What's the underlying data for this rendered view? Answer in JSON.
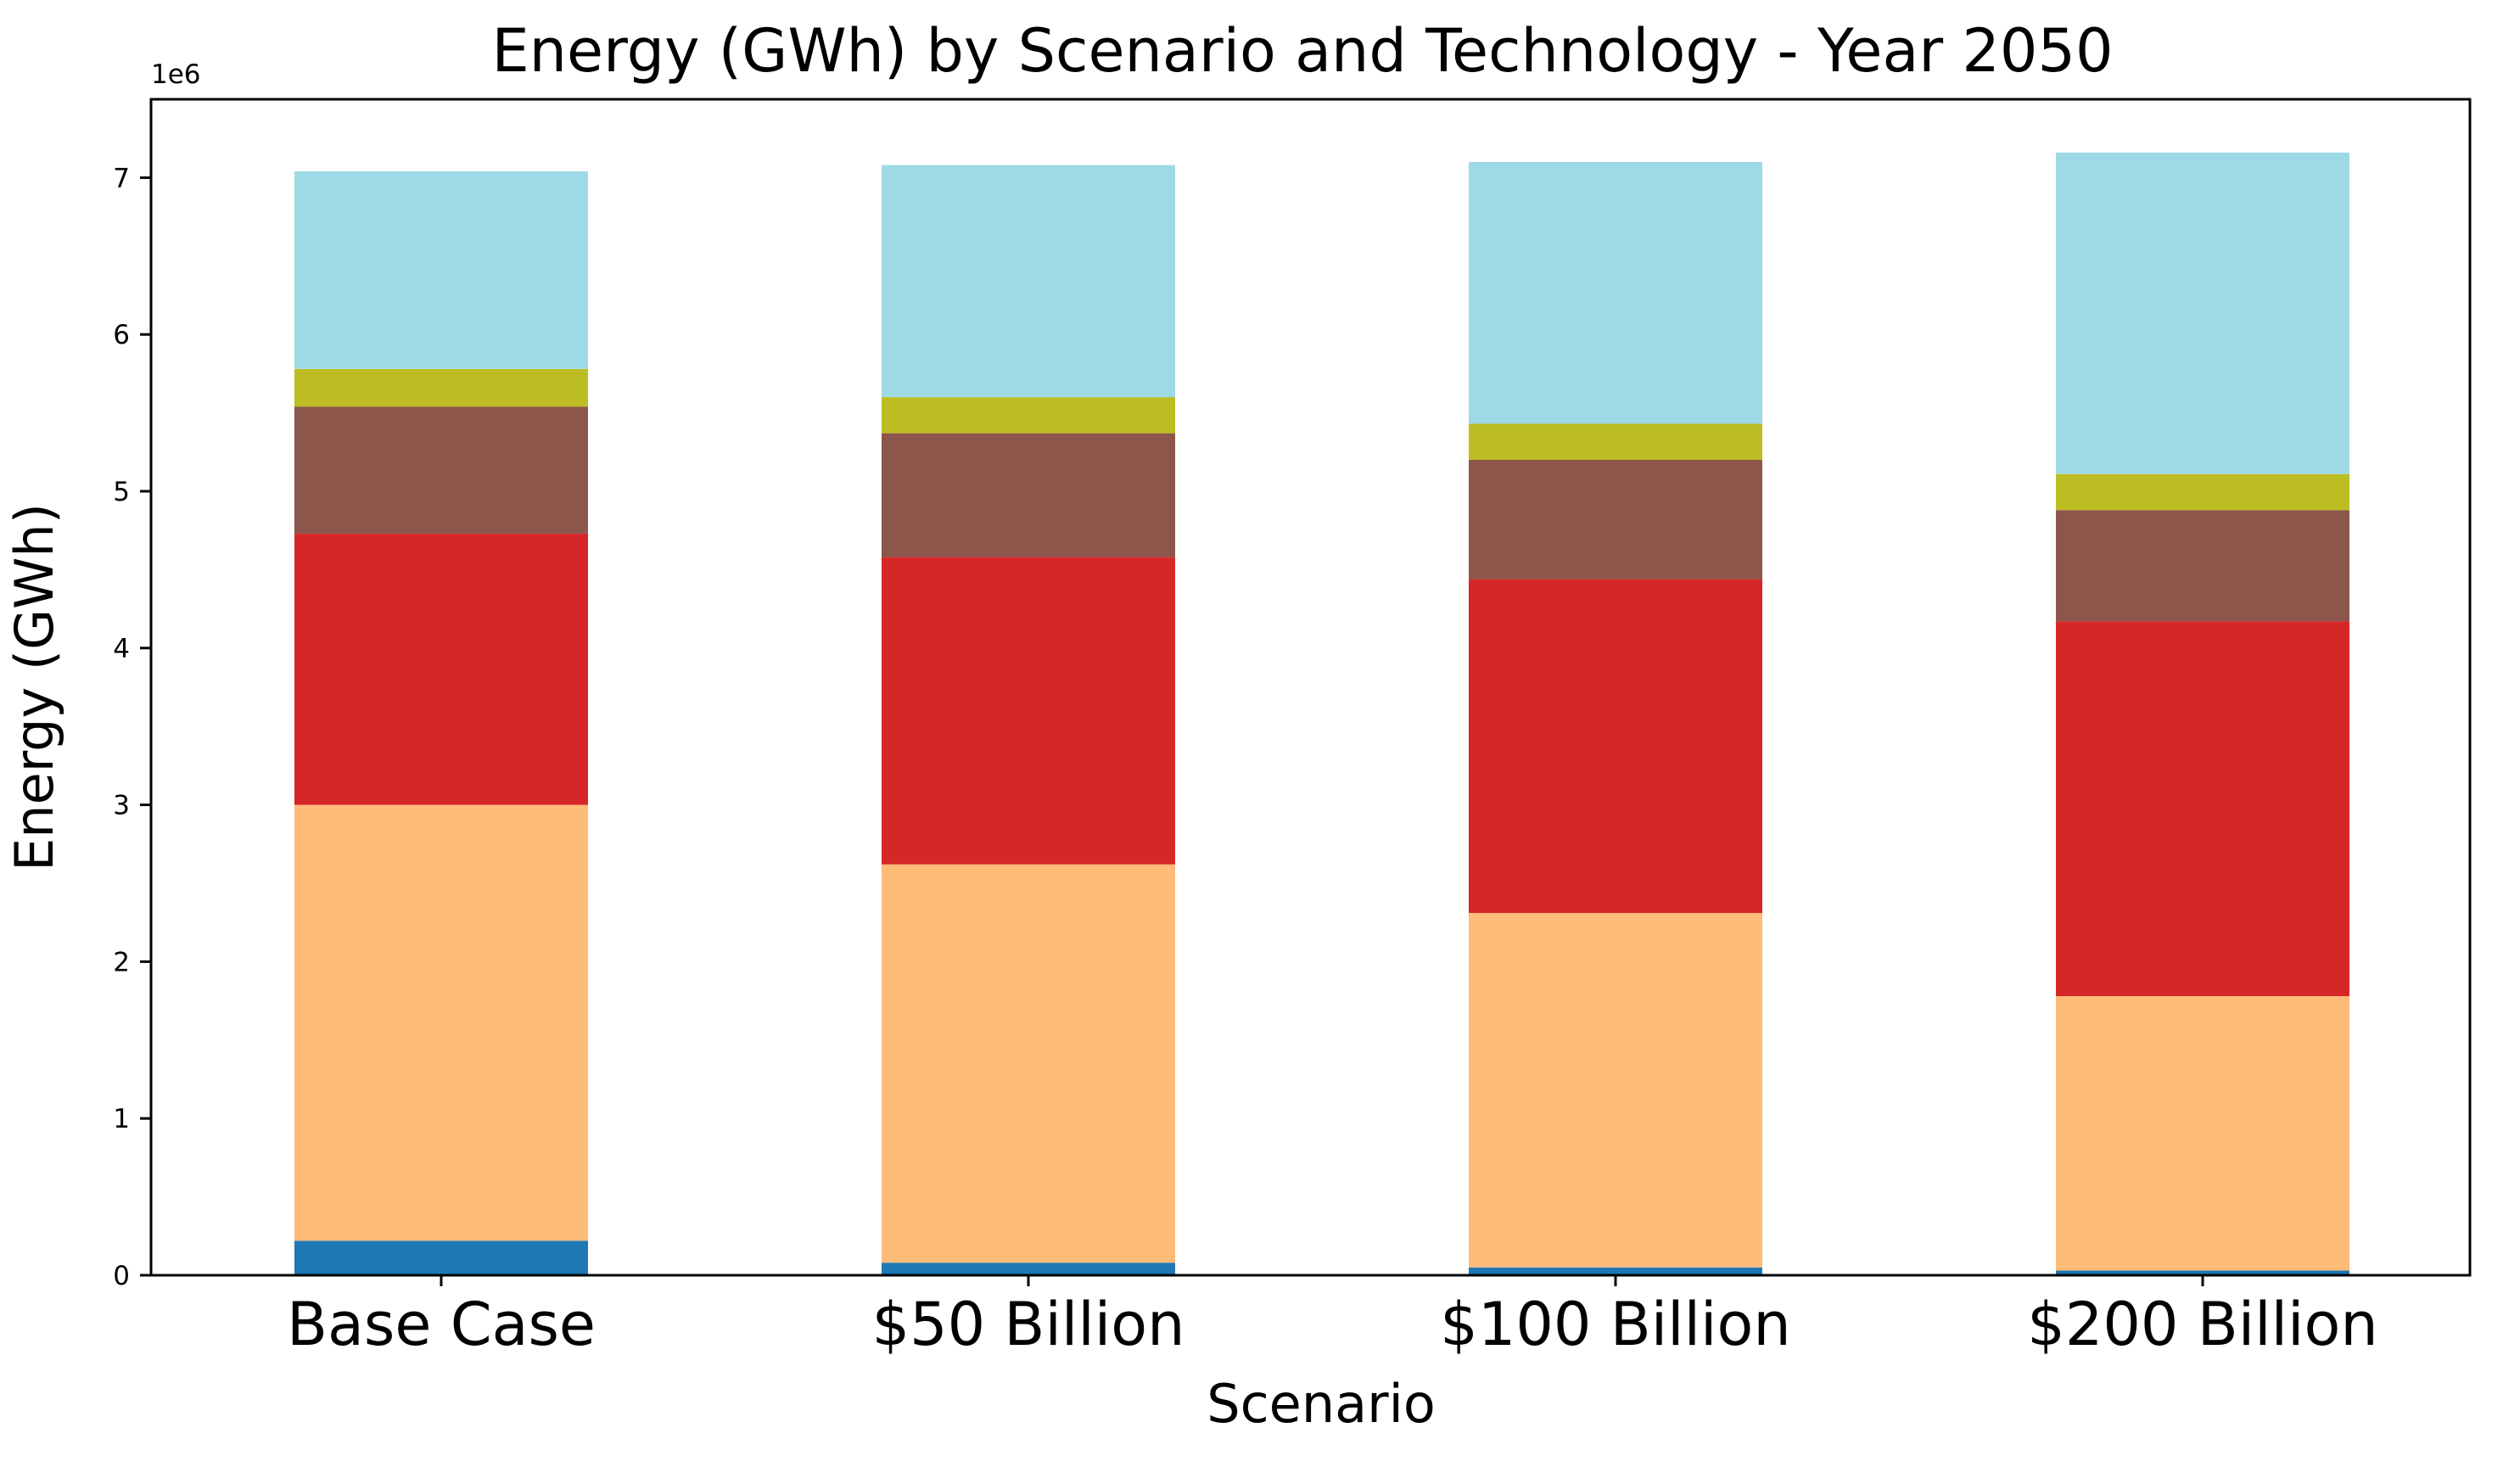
{
  "chart_data": {
    "type": "bar",
    "stacked": true,
    "title": "Energy (GWh) by Scenario and Technology - Year 2050",
    "xlabel": "Scenario",
    "ylabel": "Energy (GWh)",
    "y_offset_label": "1e6",
    "ylim": [
      0,
      7500000
    ],
    "yticks": [
      0,
      1000000,
      2000000,
      3000000,
      4000000,
      5000000,
      6000000,
      7000000
    ],
    "ytick_labels": [
      "0",
      "1",
      "2",
      "3",
      "4",
      "5",
      "6",
      "7"
    ],
    "categories": [
      "Base Case",
      "$50 Billion",
      "$100 Billion",
      "$200 Billion"
    ],
    "grid": false,
    "legend": "none",
    "series": [
      {
        "color": "#1f77b4",
        "values": [
          220000,
          80000,
          50000,
          30000
        ]
      },
      {
        "color": "#ffbb78",
        "values": [
          2780000,
          2540000,
          2260000,
          1750000
        ]
      },
      {
        "color": "#d62728",
        "values": [
          1730000,
          1960000,
          2130000,
          2390000
        ]
      },
      {
        "color": "#8c564b",
        "values": [
          810000,
          790000,
          760000,
          710000
        ]
      },
      {
        "color": "#bcbd22",
        "values": [
          240000,
          230000,
          230000,
          230000
        ]
      },
      {
        "color": "#9edae5",
        "values": [
          1260000,
          1480000,
          1670000,
          2050000
        ]
      }
    ]
  }
}
